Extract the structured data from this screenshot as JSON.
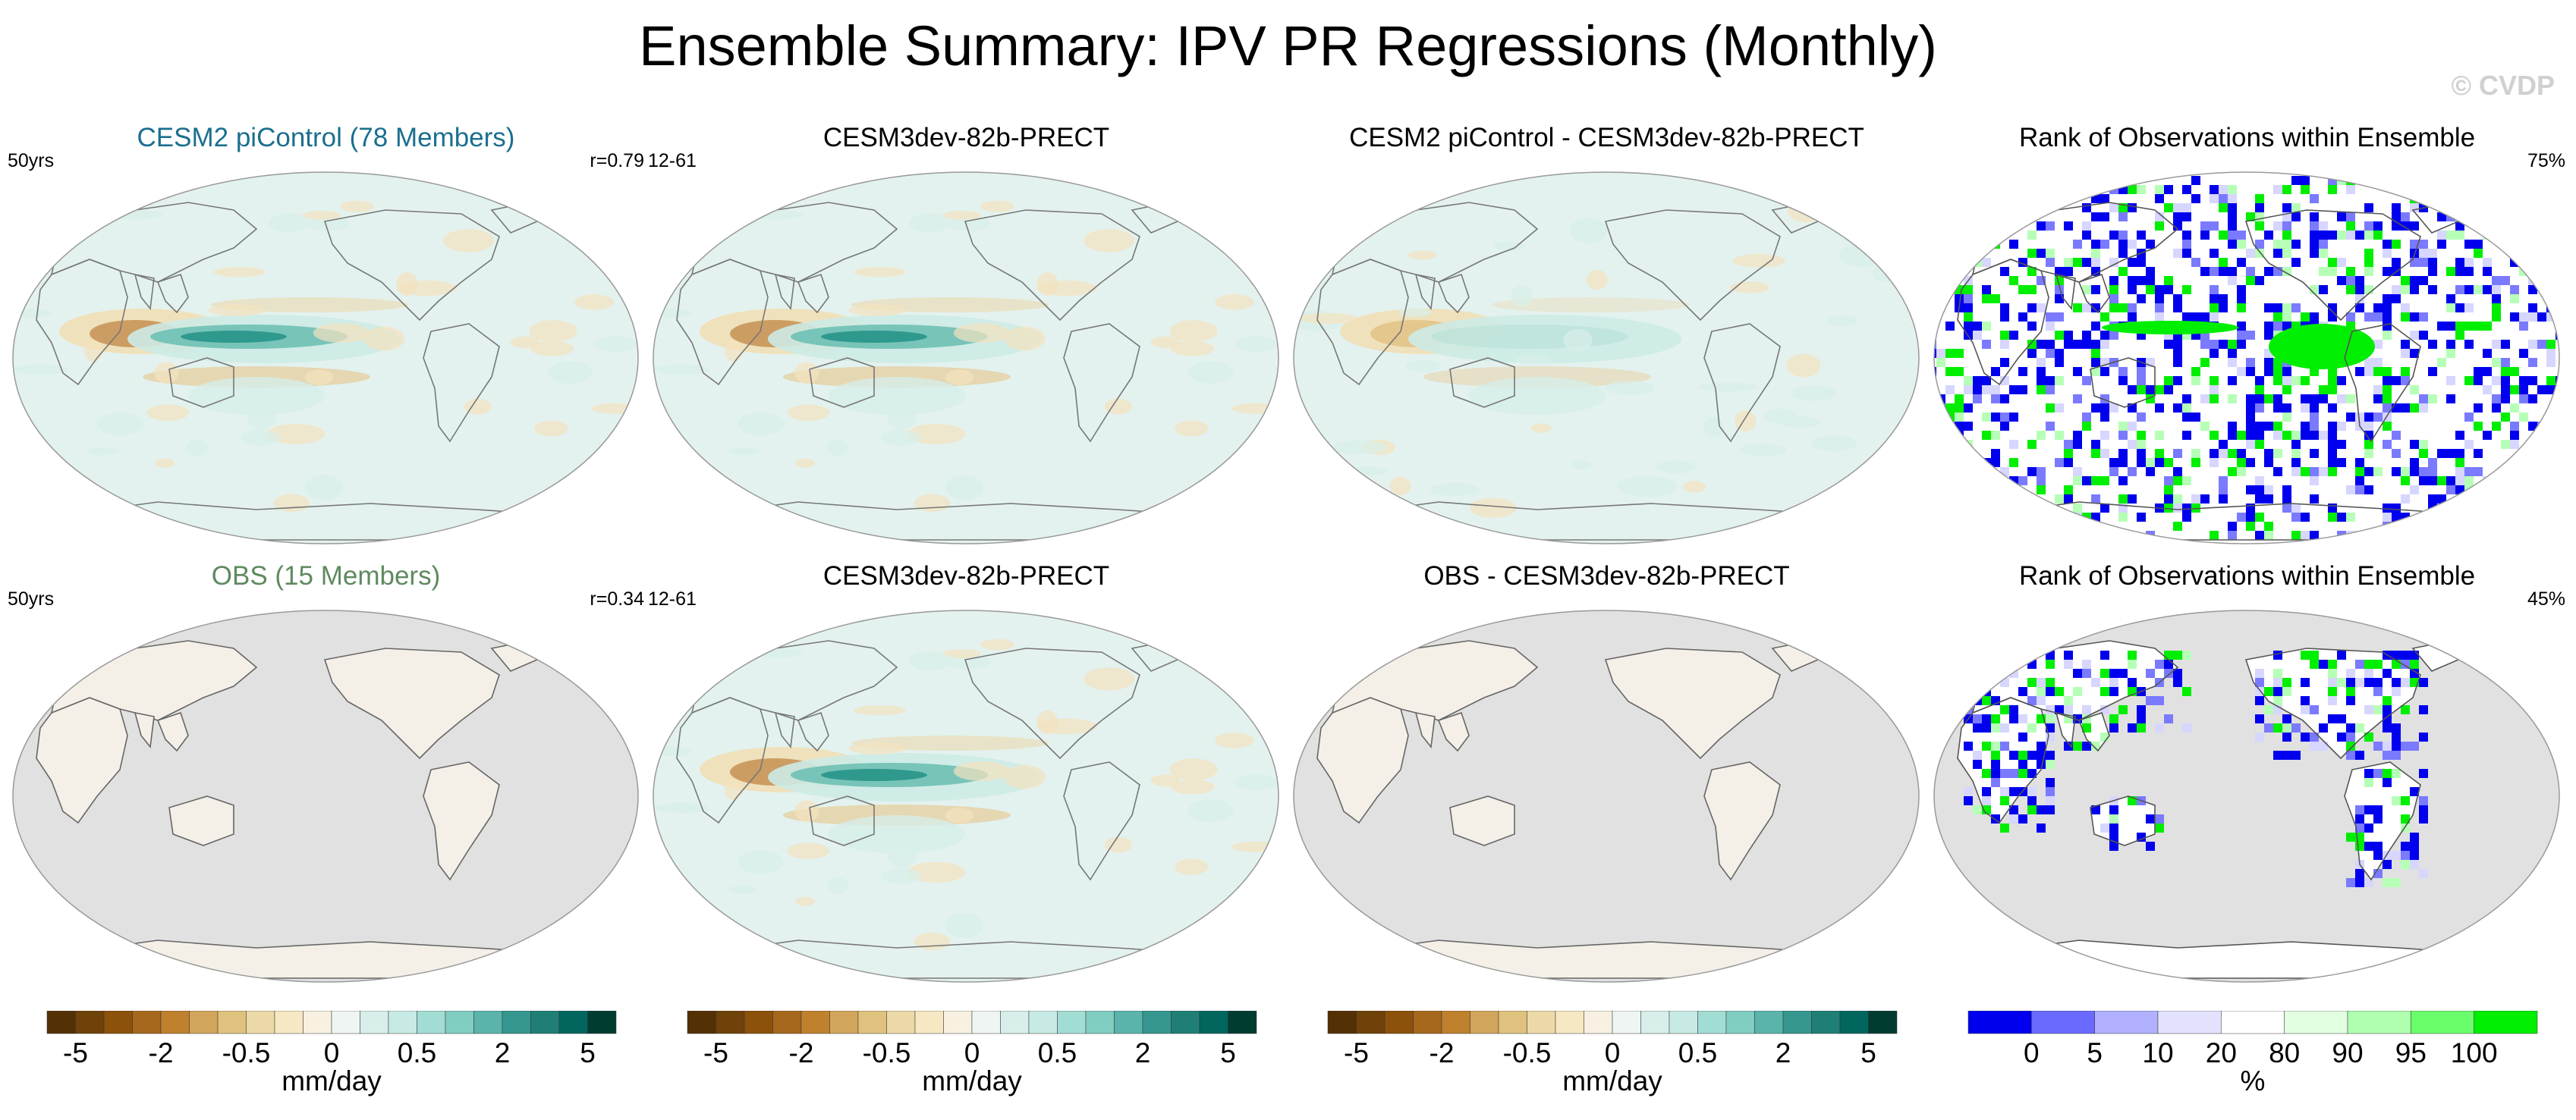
{
  "page_title": "Ensemble Summary: IPV PR Regressions (Monthly)",
  "copyright": "© CVDP",
  "colors": {
    "ocean_light": "#e3f2ef",
    "land_light": "#f7efe0",
    "gray_land": "#e1e1e1",
    "rank_blue": "#0000ee",
    "rank_green": "#00ee00",
    "obs_title": "#5f8a5f",
    "model_title": "#1b6f8f"
  },
  "panels": [
    {
      "title": "CESM2 piControl (78 Members)",
      "left_label": "50yrs",
      "right_label": "r=0.79",
      "title_color": "#1b6f8f"
    },
    {
      "title": "CESM3dev-82b-PRECT",
      "left_label": "12-61",
      "right_label": "",
      "title_color": "#000000"
    },
    {
      "title": "CESM2 piControl - CESM3dev-82b-PRECT",
      "left_label": "",
      "right_label": "",
      "title_color": "#000000"
    },
    {
      "title": "Rank of Observations within Ensemble",
      "left_label": "",
      "right_label": "75%",
      "title_color": "#000000"
    },
    {
      "title": "OBS (15 Members)",
      "left_label": "50yrs",
      "right_label": "r=0.34",
      "title_color": "#5f8a5f"
    },
    {
      "title": "CESM3dev-82b-PRECT",
      "left_label": "12-61",
      "right_label": "",
      "title_color": "#000000"
    },
    {
      "title": "OBS - CESM3dev-82b-PRECT",
      "left_label": "",
      "right_label": "",
      "title_color": "#000000"
    },
    {
      "title": "Rank of Observations within Ensemble",
      "left_label": "",
      "right_label": "45%",
      "title_color": "#000000"
    }
  ],
  "chart_data": [
    {
      "type": "heatmap",
      "name": "precip-regression-colorbar",
      "unit": "mm/day",
      "tick_labels": [
        "-5",
        "-2",
        "-0.5",
        "0",
        "0.5",
        "2",
        "5"
      ],
      "colors": [
        "#543005",
        "#6e4208",
        "#8c510a",
        "#a6681c",
        "#bf812d",
        "#d2a55c",
        "#dfc27d",
        "#edd9a8",
        "#f6e8c3",
        "#f8f1e2",
        "#eef5f3",
        "#d7eeea",
        "#c7eae5",
        "#a2ddd4",
        "#80cdc1",
        "#5ab4ac",
        "#35978f",
        "#1f7f77",
        "#01665e",
        "#003c30"
      ]
    },
    {
      "type": "heatmap",
      "name": "rank-colorbar",
      "unit": "%",
      "tick_labels": [
        "0",
        "5",
        "10",
        "20",
        "80",
        "90",
        "95",
        "100"
      ],
      "bins": [
        0,
        5,
        10,
        20,
        80,
        90,
        95,
        100
      ],
      "colors": [
        "#0000ee",
        "#6a6aff",
        "#b0b0ff",
        "#e2e2ff",
        "#ffffff",
        "#e2ffe2",
        "#b0ffb0",
        "#6aff6a",
        "#00ee00"
      ]
    }
  ]
}
